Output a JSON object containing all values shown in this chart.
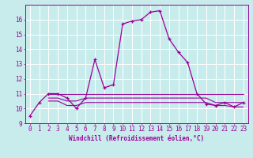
{
  "title": "",
  "xlabel": "Windchill (Refroidissement éolien,°C)",
  "bg_color": "#c8ecec",
  "line_color": "#990099",
  "grid_color": "#ffffff",
  "x_main": [
    0,
    1,
    2,
    3,
    4,
    5,
    6,
    7,
    8,
    9,
    10,
    11,
    12,
    13,
    14,
    15,
    16,
    17,
    18,
    19,
    20,
    21,
    22,
    23
  ],
  "y_main": [
    9.5,
    10.4,
    11.0,
    11.0,
    10.7,
    10.0,
    10.7,
    13.3,
    11.4,
    11.6,
    15.7,
    15.9,
    16.0,
    16.5,
    16.6,
    14.7,
    13.8,
    13.1,
    11.0,
    10.3,
    10.2,
    10.4,
    10.1,
    10.4
  ],
  "x_flat1": [
    2,
    3,
    4,
    5,
    6,
    7,
    8,
    9,
    10,
    11,
    12,
    13,
    14,
    15,
    16,
    17,
    18,
    19,
    20,
    21,
    22,
    23
  ],
  "y_flat1": [
    11.0,
    11.0,
    11.0,
    11.0,
    11.0,
    11.0,
    11.0,
    11.0,
    11.0,
    11.0,
    11.0,
    11.0,
    11.0,
    11.0,
    11.0,
    11.0,
    11.0,
    11.0,
    11.0,
    11.0,
    11.0,
    11.0
  ],
  "x_flat2": [
    2,
    3,
    4,
    5,
    6,
    7,
    8,
    9,
    10,
    11,
    12,
    13,
    14,
    15,
    16,
    17,
    18,
    19,
    20,
    21,
    22,
    23
  ],
  "y_flat2": [
    10.7,
    10.7,
    10.5,
    10.5,
    10.7,
    10.7,
    10.7,
    10.7,
    10.7,
    10.7,
    10.7,
    10.7,
    10.7,
    10.7,
    10.7,
    10.7,
    10.7,
    10.7,
    10.4,
    10.4,
    10.4,
    10.4
  ],
  "x_flat3": [
    2,
    3,
    4,
    5,
    6,
    7,
    8,
    9,
    10,
    11,
    12,
    13,
    14,
    15,
    16,
    17,
    18,
    19,
    20,
    21,
    22,
    23
  ],
  "y_flat3": [
    10.5,
    10.5,
    10.2,
    10.2,
    10.4,
    10.4,
    10.4,
    10.4,
    10.4,
    10.4,
    10.4,
    10.4,
    10.4,
    10.4,
    10.4,
    10.4,
    10.4,
    10.4,
    10.2,
    10.2,
    10.1,
    10.1
  ],
  "ylim": [
    9.0,
    17.0
  ],
  "xlim_left": -0.5,
  "xlim_right": 23.5,
  "yticks": [
    9,
    10,
    11,
    12,
    13,
    14,
    15,
    16
  ],
  "xticks": [
    0,
    1,
    2,
    3,
    4,
    5,
    6,
    7,
    8,
    9,
    10,
    11,
    12,
    13,
    14,
    15,
    16,
    17,
    18,
    19,
    20,
    21,
    22,
    23
  ],
  "tick_fontsize": 5.5,
  "label_fontsize": 5.5
}
